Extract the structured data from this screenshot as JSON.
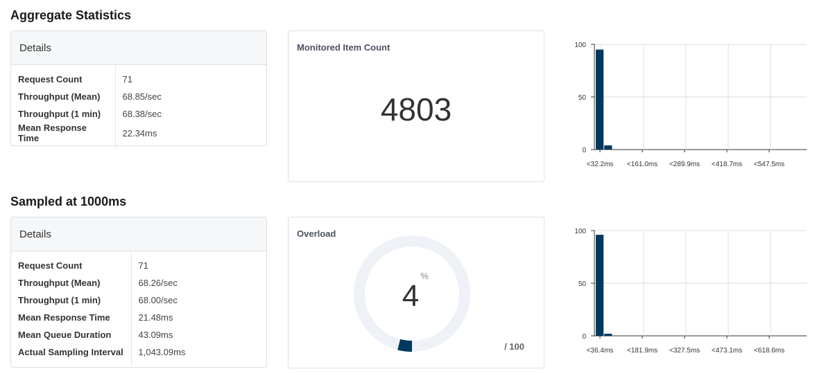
{
  "sections": [
    {
      "title": "Aggregate Statistics",
      "details": {
        "header": "Details",
        "rows": [
          {
            "label": "Request Count",
            "value": "71"
          },
          {
            "label": "Throughput (Mean)",
            "value": "68.85/sec"
          },
          {
            "label": "Throughput (1 min)",
            "value": "68.38/sec"
          },
          {
            "label": "Mean Response Time",
            "value": "22.34ms"
          }
        ]
      },
      "metric": {
        "title": "Monitored Item Count",
        "value": "4803"
      }
    },
    {
      "title": "Sampled at 1000ms",
      "details": {
        "header": "Details",
        "rows": [
          {
            "label": "Request Count",
            "value": "71"
          },
          {
            "label": "Throughput (Mean)",
            "value": "68.26/sec"
          },
          {
            "label": "Throughput (1 min)",
            "value": "68.00/sec"
          },
          {
            "label": "Mean Response Time",
            "value": "21.48ms"
          },
          {
            "label": "Mean Queue Duration",
            "value": "43.09ms"
          },
          {
            "label": "Actual Sampling Interval",
            "value": "1,043.09ms"
          }
        ]
      },
      "gauge": {
        "title": "Overload",
        "value": "4",
        "unit": "%",
        "max_label": "/ 100",
        "fraction": 0.04,
        "track_color": "#eef2f6",
        "fill_color": "#00395f"
      }
    }
  ],
  "chart_data": [
    {
      "type": "bar",
      "categories": [
        "<32.2ms",
        "",
        "",
        "",
        "",
        "<161.0ms",
        "",
        "",
        "",
        "",
        "<289.9ms",
        "",
        "",
        "",
        "",
        "<418.7ms",
        "",
        "",
        "",
        "",
        "<547.5ms",
        "",
        "",
        "",
        ""
      ],
      "tick_labels": [
        "<32.2ms",
        "<161.0ms",
        "<289.9ms",
        "<418.7ms",
        "<547.5ms"
      ],
      "values": [
        95,
        4,
        0,
        0,
        0,
        0,
        0,
        0,
        0,
        0,
        0,
        0,
        0,
        0,
        0,
        0,
        0,
        0,
        0,
        0,
        0,
        0,
        0,
        0,
        0
      ],
      "y_ticks": [
        "100",
        "50",
        "0"
      ],
      "ylim": [
        0,
        100
      ],
      "grid": true,
      "bar_color": "#00395f"
    },
    {
      "type": "bar",
      "categories": [
        "<36.4ms",
        "",
        "",
        "",
        "",
        "<181.9ms",
        "",
        "",
        "",
        "",
        "<327.5ms",
        "",
        "",
        "",
        "",
        "<473.1ms",
        "",
        "",
        "",
        "",
        "<618.6ms",
        "",
        "",
        "",
        ""
      ],
      "tick_labels": [
        "<36.4ms",
        "<181.9ms",
        "<327.5ms",
        "<473.1ms",
        "<618.6ms"
      ],
      "values": [
        96,
        2,
        0,
        0,
        0,
        0,
        0,
        0,
        0,
        0,
        0,
        0,
        0,
        0,
        0,
        0,
        0,
        0,
        0,
        0,
        0,
        0,
        0,
        0,
        0
      ],
      "y_ticks": [
        "100",
        "50",
        "0"
      ],
      "ylim": [
        0,
        100
      ],
      "grid": true,
      "bar_color": "#00395f"
    }
  ]
}
